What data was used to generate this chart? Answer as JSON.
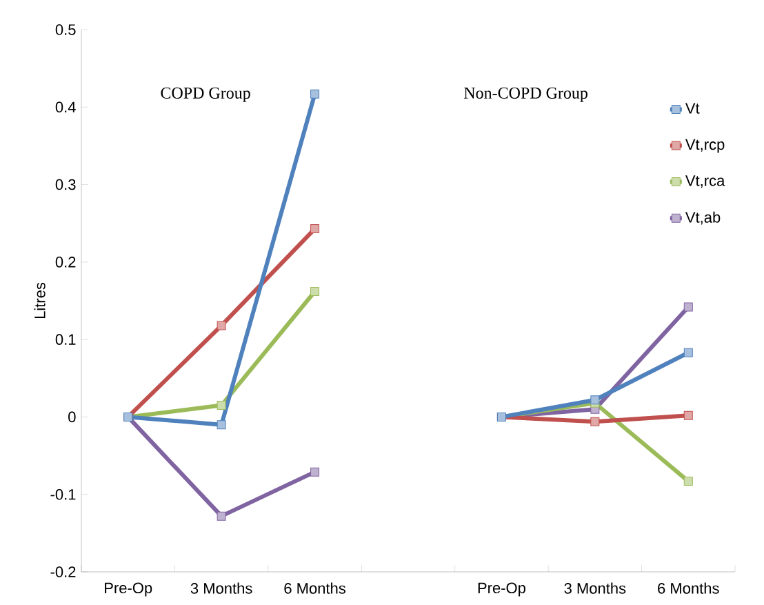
{
  "chart_data": {
    "type": "line",
    "ylabel": "Litres",
    "categories": [
      "Pre-Op",
      "3 Months",
      "6 Months",
      null,
      "Pre-Op",
      "3 Months",
      "6 Months"
    ],
    "series": [
      {
        "name": "Vt",
        "color": "#4f81bd",
        "values": [
          0,
          -0.01,
          0.417,
          null,
          0,
          0.022,
          0.083
        ]
      },
      {
        "name": "Vt,rcp",
        "color": "#c0504d",
        "values": [
          0,
          0.118,
          0.243,
          null,
          0,
          -0.006,
          0.002
        ]
      },
      {
        "name": "Vt,rca",
        "color": "#9bbb59",
        "values": [
          0,
          0.015,
          0.162,
          null,
          0,
          0.018,
          -0.083
        ]
      },
      {
        "name": "Vt,ab",
        "color": "#8064a2",
        "values": [
          0,
          -0.128,
          -0.071,
          null,
          0,
          0.01,
          0.142
        ]
      }
    ],
    "annotations": [
      "COPD Group",
      "Non-COPD Group"
    ],
    "ylim": [
      -0.2,
      0.5
    ],
    "yticks": [
      -0.2,
      -0.1,
      0,
      0.1,
      0.2,
      0.3,
      0.4,
      0.5
    ],
    "legend": "top right",
    "marker": "square",
    "line_style": "solid",
    "grid": false
  }
}
